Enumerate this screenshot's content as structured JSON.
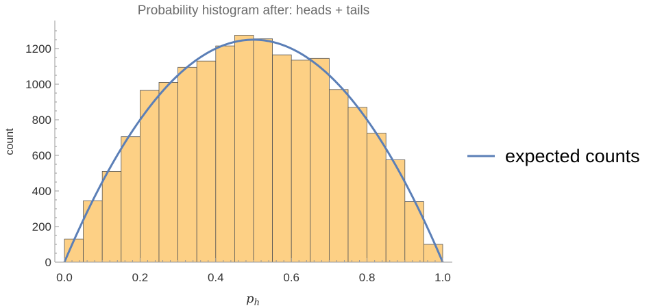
{
  "chart_data": {
    "type": "bar",
    "title": "Probability histogram after: heads + tails",
    "xlabel": "p",
    "xlabel_sub": "h",
    "ylabel": "count",
    "xlim": [
      0,
      1
    ],
    "ylim": [
      0,
      1300
    ],
    "x_ticks": [
      "0.0",
      "0.2",
      "0.4",
      "0.6",
      "0.8",
      "1.0"
    ],
    "y_ticks": [
      "0",
      "200",
      "400",
      "600",
      "800",
      "1000",
      "1200"
    ],
    "bin_width": 0.05,
    "bins": [
      0.0,
      0.05,
      0.1,
      0.15,
      0.2,
      0.25,
      0.3,
      0.35,
      0.4,
      0.45,
      0.5,
      0.55,
      0.6,
      0.65,
      0.7,
      0.75,
      0.8,
      0.85,
      0.9,
      0.95
    ],
    "values": [
      130,
      345,
      510,
      705,
      965,
      1010,
      1095,
      1130,
      1215,
      1275,
      1255,
      1165,
      1135,
      1145,
      970,
      870,
      725,
      575,
      340,
      100
    ],
    "series": [
      {
        "name": "expected counts",
        "type": "line",
        "formula": "5000*x*(1-x)",
        "color": "#5b7fb7"
      }
    ],
    "legend_position": "right",
    "bar_color": "#fdd085",
    "bar_stroke": "#555555",
    "axis_color": "#999999",
    "grid": false
  }
}
